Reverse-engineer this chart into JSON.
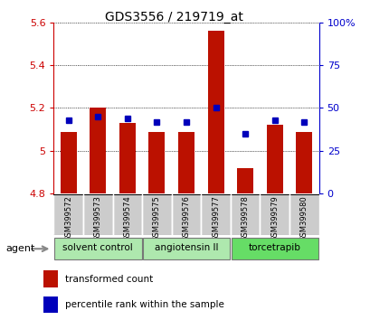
{
  "title": "GDS3556 / 219719_at",
  "samples": [
    "GSM399572",
    "GSM399573",
    "GSM399574",
    "GSM399575",
    "GSM399576",
    "GSM399577",
    "GSM399578",
    "GSM399579",
    "GSM399580"
  ],
  "red_values": [
    5.09,
    5.2,
    5.13,
    5.09,
    5.09,
    5.56,
    4.92,
    5.12,
    5.09
  ],
  "blue_values": [
    43,
    45,
    44,
    42,
    42,
    50,
    35,
    43,
    42
  ],
  "ylim_left": [
    4.8,
    5.6
  ],
  "ylim_right": [
    0,
    100
  ],
  "yticks_left": [
    4.8,
    5.0,
    5.2,
    5.4,
    5.6
  ],
  "yticks_right": [
    0,
    25,
    50,
    75,
    100
  ],
  "ytick_labels_left": [
    "4.8",
    "5",
    "5.2",
    "5.4",
    "5.6"
  ],
  "ytick_labels_right": [
    "0",
    "25",
    "50",
    "75",
    "100%"
  ],
  "groups": [
    {
      "label": "solvent control",
      "indices": [
        0,
        1,
        2
      ],
      "color": "#aee8ae"
    },
    {
      "label": "angiotensin II",
      "indices": [
        3,
        4,
        5
      ],
      "color": "#aee8ae"
    },
    {
      "label": "torcetrapib",
      "indices": [
        6,
        7,
        8
      ],
      "color": "#66dd66"
    }
  ],
  "bar_color": "#bb1100",
  "blue_color": "#0000bb",
  "bar_bottom": 4.8,
  "bar_width": 0.55,
  "legend_red": "transformed count",
  "legend_blue": "percentile rank within the sample",
  "agent_label": "agent",
  "left_axis_color": "#cc0000",
  "right_axis_color": "#0000cc",
  "sample_box_color": "#cccccc",
  "background_color": "#ffffff"
}
